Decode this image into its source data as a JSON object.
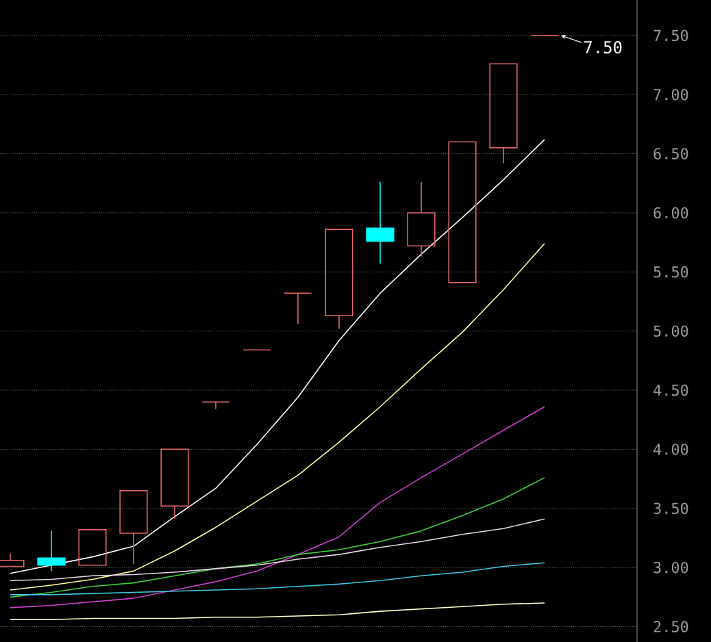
{
  "chart_data": {
    "type": "candlestick",
    "categories": [
      null,
      null,
      null,
      null,
      null,
      null,
      null,
      null,
      null,
      null,
      null,
      null,
      null,
      null
    ],
    "ohlc": [
      [
        3.01,
        3.12,
        3.01,
        3.06
      ],
      [
        3.08,
        3.31,
        2.97,
        3.02
      ],
      [
        3.02,
        3.32,
        3.02,
        3.32
      ],
      [
        3.29,
        3.65,
        3.03,
        3.65
      ],
      [
        3.52,
        4.0,
        3.41,
        4.0
      ],
      [
        4.4,
        4.4,
        4.34,
        4.4
      ],
      [
        4.84,
        4.84,
        4.84,
        4.84
      ],
      [
        5.32,
        5.32,
        5.06,
        5.32
      ],
      [
        5.13,
        5.86,
        5.02,
        5.86
      ],
      [
        5.87,
        6.26,
        5.57,
        5.76
      ],
      [
        5.72,
        6.26,
        5.63,
        6.0
      ],
      [
        5.41,
        6.6,
        5.41,
        6.6
      ],
      [
        6.55,
        7.26,
        6.42,
        7.26
      ],
      [
        7.5,
        7.5,
        7.5,
        7.5
      ]
    ],
    "colors": [
      "#e06666",
      "#00ffff",
      "#e06666",
      "#e06666",
      "#e06666",
      "#e06666",
      "#e06666",
      "#e06666",
      "#e06666",
      "#00ffff",
      "#e06666",
      "#e06666",
      "#e06666",
      "#e06666"
    ],
    "series": [
      {
        "type": "line",
        "color": "#ffffff",
        "values": [
          2.95,
          null,
          3.09,
          3.18,
          3.43,
          3.67,
          4.04,
          4.44,
          4.92,
          5.32,
          5.65,
          5.96,
          6.28,
          6.62
        ]
      },
      {
        "type": "line",
        "color": "#ffff99",
        "values": [
          2.81,
          2.85,
          2.9,
          2.97,
          3.14,
          3.34,
          3.56,
          3.78,
          4.06,
          4.36,
          4.68,
          4.99,
          5.35,
          5.74
        ]
      },
      {
        "type": "line",
        "color": "#d040d0",
        "values": [
          2.66,
          2.68,
          2.71,
          2.74,
          2.81,
          2.88,
          2.97,
          3.11,
          3.26,
          3.55,
          3.76,
          3.96,
          4.16,
          4.36
        ]
      },
      {
        "type": "line",
        "color": "#40d040",
        "values": [
          2.75,
          2.79,
          2.84,
          2.87,
          2.93,
          2.99,
          3.03,
          3.11,
          3.15,
          3.22,
          3.31,
          3.44,
          3.58,
          3.76
        ]
      },
      {
        "type": "line",
        "color": "#e8d8e8",
        "values": [
          2.89,
          2.9,
          2.93,
          2.94,
          2.96,
          2.99,
          3.02,
          3.07,
          3.11,
          3.17,
          3.22,
          3.28,
          3.33,
          3.41
        ]
      },
      {
        "type": "line",
        "color": "#40c8e0",
        "values": [
          2.77,
          2.77,
          2.78,
          2.79,
          2.8,
          2.81,
          2.82,
          2.84,
          2.86,
          2.89,
          2.93,
          2.96,
          3.01,
          3.04
        ]
      },
      {
        "type": "line",
        "color": "#ffffcc",
        "values": [
          2.56,
          2.56,
          2.57,
          2.57,
          2.57,
          2.58,
          2.58,
          2.59,
          2.6,
          2.63,
          2.65,
          2.67,
          2.69,
          2.7
        ]
      }
    ],
    "ylim": [
      2.37,
      7.8
    ],
    "yticks": [
      {
        "value": 2.5,
        "label": "2.50"
      },
      {
        "value": 3.0,
        "label": "3.00"
      },
      {
        "value": 3.5,
        "label": "3.50"
      },
      {
        "value": 4.0,
        "label": "4.00"
      },
      {
        "value": 4.5,
        "label": "4.50"
      },
      {
        "value": 5.0,
        "label": "5.00"
      },
      {
        "value": 5.5,
        "label": "5.50"
      },
      {
        "value": 6.0,
        "label": "6.00"
      },
      {
        "value": 6.5,
        "label": "6.50"
      },
      {
        "value": 7.0,
        "label": "7.00"
      },
      {
        "value": 7.5,
        "label": "7.50"
      }
    ],
    "grid": "y",
    "tick_labels": "y",
    "annotations": [
      "7.50"
    ]
  }
}
